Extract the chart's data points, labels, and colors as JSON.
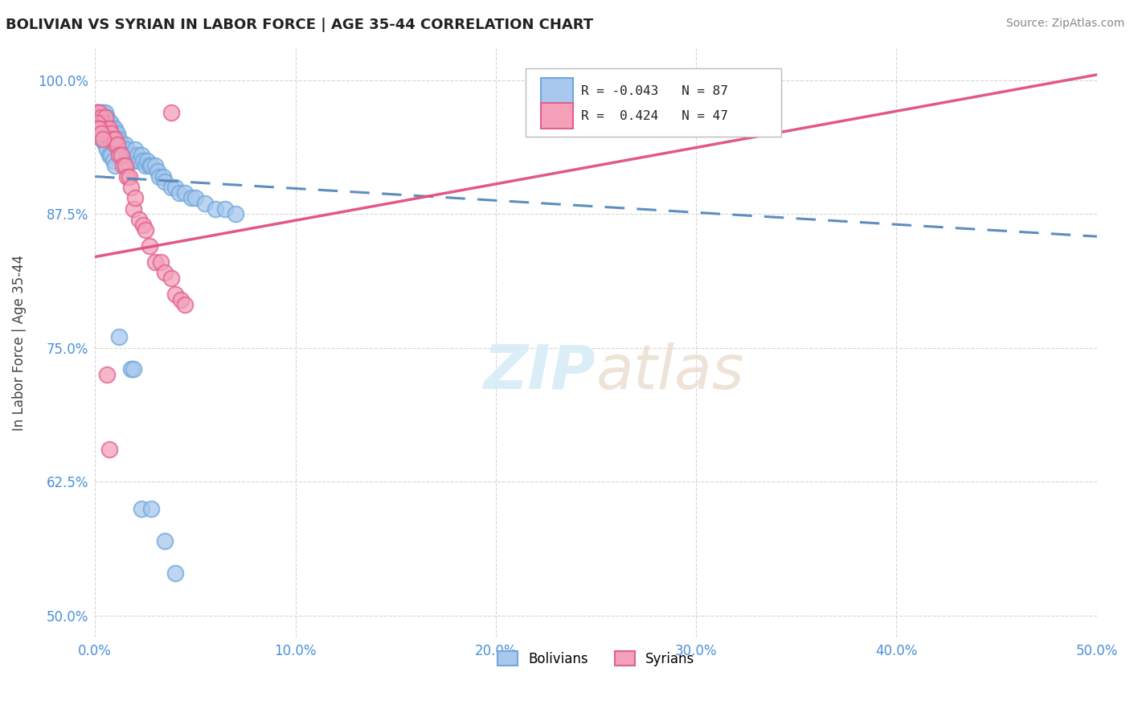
{
  "title": "BOLIVIAN VS SYRIAN IN LABOR FORCE | AGE 35-44 CORRELATION CHART",
  "source_text": "Source: ZipAtlas.com",
  "ylabel": "In Labor Force | Age 35-44",
  "bolivian_R": -0.043,
  "bolivian_N": 87,
  "syrian_R": 0.424,
  "syrian_N": 47,
  "xlim": [
    0.0,
    0.5
  ],
  "ylim": [
    0.48,
    1.03
  ],
  "xticks": [
    0.0,
    0.1,
    0.2,
    0.3,
    0.4,
    0.5
  ],
  "xticklabels": [
    "0.0%",
    "10.0%",
    "20.0%",
    "30.0%",
    "40.0%",
    "50.0%"
  ],
  "yticks": [
    0.5,
    0.625,
    0.75,
    0.875,
    1.0
  ],
  "yticklabels": [
    "50.0%",
    "62.5%",
    "75.0%",
    "87.5%",
    "100.0%"
  ],
  "blue_color": "#6fa8dc",
  "pink_color": "#e06090",
  "blue_fill": "#a8c8ee",
  "pink_fill": "#f4a0b8",
  "blue_line_color": "#5588bb",
  "pink_line_color": "#e05080",
  "background_color": "#ffffff",
  "watermark_color": "#d8edf8",
  "bolivian_x": [
    0.001,
    0.001,
    0.002,
    0.002,
    0.002,
    0.003,
    0.003,
    0.003,
    0.003,
    0.004,
    0.004,
    0.004,
    0.005,
    0.005,
    0.005,
    0.005,
    0.006,
    0.006,
    0.006,
    0.007,
    0.007,
    0.007,
    0.008,
    0.008,
    0.008,
    0.008,
    0.009,
    0.009,
    0.009,
    0.01,
    0.01,
    0.01,
    0.011,
    0.011,
    0.012,
    0.012,
    0.013,
    0.013,
    0.014,
    0.015,
    0.015,
    0.016,
    0.016,
    0.017,
    0.018,
    0.019,
    0.02,
    0.021,
    0.022,
    0.023,
    0.024,
    0.025,
    0.026,
    0.027,
    0.028,
    0.03,
    0.031,
    0.032,
    0.034,
    0.035,
    0.038,
    0.04,
    0.042,
    0.045,
    0.048,
    0.05,
    0.055,
    0.06,
    0.065,
    0.07,
    0.002,
    0.003,
    0.003,
    0.004,
    0.005,
    0.006,
    0.007,
    0.008,
    0.009,
    0.01,
    0.012,
    0.018,
    0.019,
    0.023,
    0.028,
    0.035,
    0.04
  ],
  "bolivian_y": [
    0.97,
    0.97,
    0.965,
    0.97,
    0.96,
    0.97,
    0.965,
    0.96,
    0.965,
    0.97,
    0.965,
    0.96,
    0.965,
    0.97,
    0.96,
    0.955,
    0.965,
    0.96,
    0.955,
    0.96,
    0.955,
    0.95,
    0.96,
    0.955,
    0.95,
    0.955,
    0.955,
    0.95,
    0.945,
    0.95,
    0.955,
    0.945,
    0.95,
    0.945,
    0.945,
    0.94,
    0.94,
    0.935,
    0.935,
    0.94,
    0.93,
    0.935,
    0.93,
    0.93,
    0.93,
    0.925,
    0.935,
    0.93,
    0.925,
    0.93,
    0.925,
    0.92,
    0.925,
    0.92,
    0.92,
    0.92,
    0.915,
    0.91,
    0.91,
    0.905,
    0.9,
    0.9,
    0.895,
    0.895,
    0.89,
    0.89,
    0.885,
    0.88,
    0.88,
    0.875,
    0.955,
    0.95,
    0.945,
    0.945,
    0.94,
    0.935,
    0.93,
    0.93,
    0.925,
    0.92,
    0.76,
    0.73,
    0.73,
    0.6,
    0.6,
    0.57,
    0.54
  ],
  "syrian_x": [
    0.001,
    0.001,
    0.002,
    0.002,
    0.003,
    0.003,
    0.004,
    0.004,
    0.005,
    0.005,
    0.006,
    0.007,
    0.007,
    0.008,
    0.009,
    0.01,
    0.01,
    0.011,
    0.012,
    0.013,
    0.014,
    0.015,
    0.016,
    0.017,
    0.018,
    0.019,
    0.02,
    0.022,
    0.024,
    0.025,
    0.027,
    0.03,
    0.033,
    0.035,
    0.038,
    0.04,
    0.043,
    0.045,
    0.001,
    0.001,
    0.002,
    0.002,
    0.003,
    0.004,
    0.006,
    0.007,
    0.038
  ],
  "syrian_y": [
    0.97,
    0.965,
    0.97,
    0.96,
    0.965,
    0.96,
    0.96,
    0.955,
    0.965,
    0.955,
    0.955,
    0.955,
    0.945,
    0.95,
    0.945,
    0.94,
    0.945,
    0.94,
    0.93,
    0.93,
    0.92,
    0.92,
    0.91,
    0.91,
    0.9,
    0.88,
    0.89,
    0.87,
    0.865,
    0.86,
    0.845,
    0.83,
    0.83,
    0.82,
    0.815,
    0.8,
    0.795,
    0.79,
    0.96,
    0.955,
    0.955,
    0.955,
    0.95,
    0.945,
    0.725,
    0.655,
    0.97
  ],
  "blue_trend_x0": 0.0,
  "blue_trend_y0": 0.91,
  "blue_trend_x1": 0.5,
  "blue_trend_y1": 0.854,
  "pink_trend_x0": 0.0,
  "pink_trend_y0": 0.835,
  "pink_trend_x1": 0.5,
  "pink_trend_y1": 1.005
}
